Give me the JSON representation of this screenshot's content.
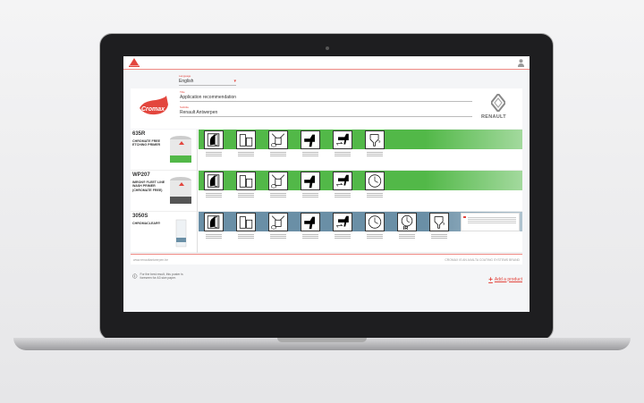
{
  "header": {
    "brand": "AXALTA"
  },
  "form": {
    "language_label": "Language",
    "language_value": "English",
    "title_label": "Title",
    "title_value": "Application recommendation",
    "subtitle_label": "Subtitle",
    "subtitle_value": "Renault Antwerpen"
  },
  "logos": {
    "left": "Cromax",
    "right": "RENAULT"
  },
  "products": [
    {
      "code": "635R",
      "name": "CHROMATE FREE ETCHING PRIMER",
      "band": "#52b848",
      "icons": [
        "hand-icon",
        "containers-icon",
        "mixing-icon",
        "spray-gun-icon",
        "flash-off-icon",
        "viscosity-cup-icon"
      ]
    },
    {
      "code": "WP207",
      "name": "IMRON® FLEET LINE WASH PRIMER (CHROMATE FREE)",
      "band": "#52b848",
      "icons": [
        "hand-icon",
        "containers-icon",
        "mixing-icon",
        "spray-gun-icon",
        "flash-off-icon",
        "clock-icon"
      ]
    },
    {
      "code": "3050S",
      "name": "CHROMACLEAR®",
      "band": "#6a8fa6",
      "icons": [
        "hand-icon",
        "containers-icon",
        "mixing-icon",
        "spray-gun-icon",
        "flash-off-icon",
        "clock-icon",
        "ir-clock-icon",
        "viscosity-cup-icon"
      ]
    }
  ],
  "footer": {
    "website": "www.renaultantwerpen.be",
    "brand_note": "CROMAX IS AN AXALTA COATING SYSTEMS BRAND"
  },
  "hint": "For the best result, this poster is foreseen for A3 size paper.",
  "add_product": "Add a product",
  "colors": {
    "accent": "#e3463e",
    "green": "#52b848",
    "blue": "#6a8fa6"
  }
}
